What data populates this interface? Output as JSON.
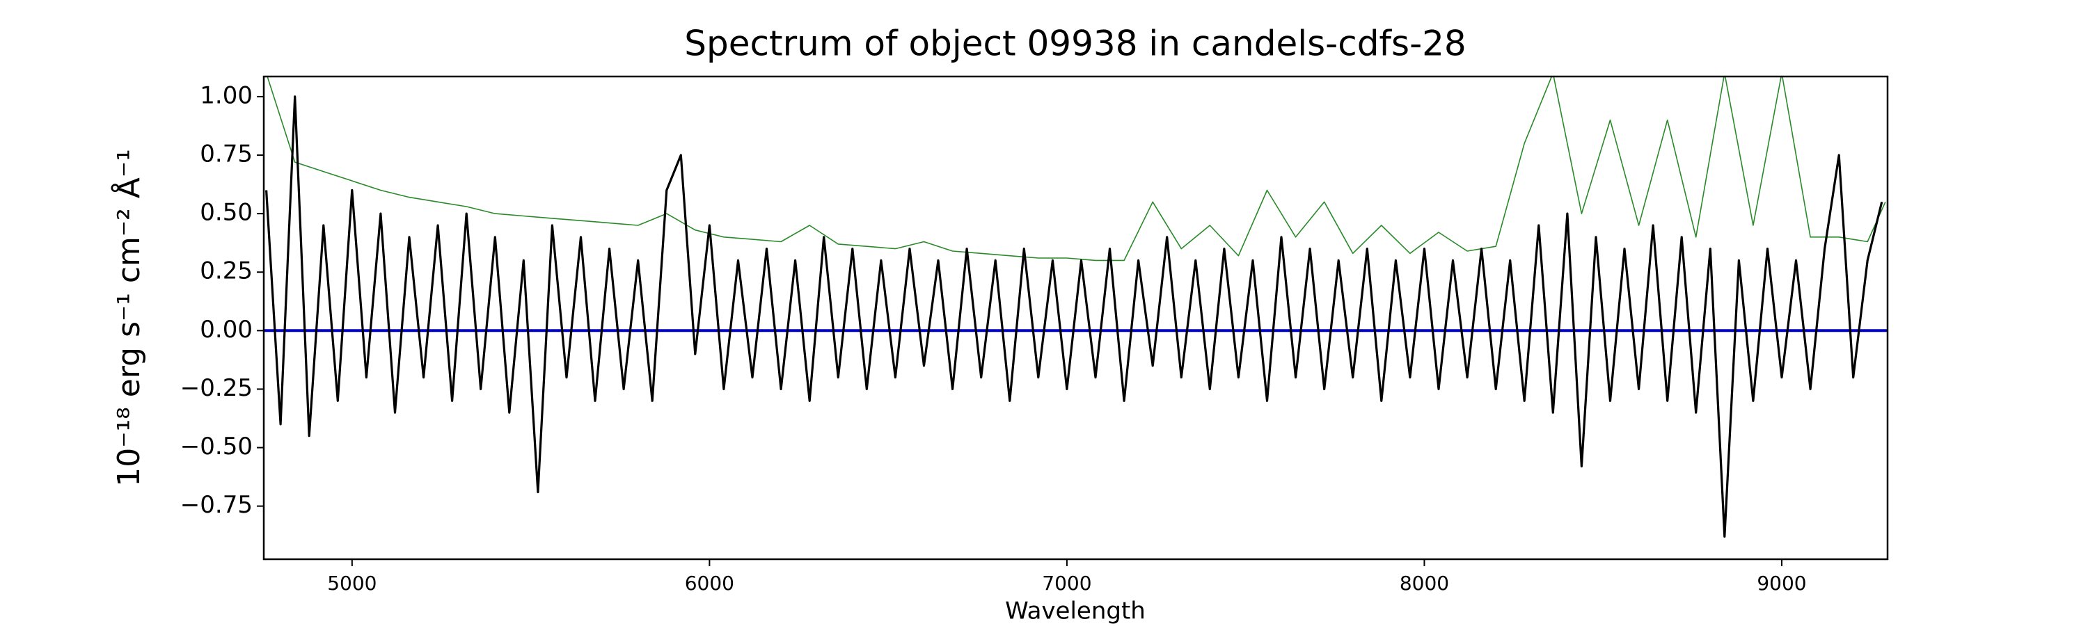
{
  "chart_data": {
    "type": "line",
    "title": "Spectrum of object 09938 in candels-cdfs-28",
    "x_label": "Wavelength",
    "y_label": "10⁻¹⁸ erg s⁻¹ cm⁻² Å⁻¹",
    "xlim": [
      4753,
      9296
    ],
    "ylim": [
      -0.977,
      1.086
    ],
    "xticks": [
      5000,
      6000,
      7000,
      8000,
      9000
    ],
    "yticks": [
      {
        "value": 1.0,
        "label": "1.00"
      },
      {
        "value": 0.75,
        "label": "0.75"
      },
      {
        "value": 0.5,
        "label": "0.50"
      },
      {
        "value": 0.25,
        "label": "0.25"
      },
      {
        "value": 0.0,
        "label": "0.00"
      },
      {
        "value": -0.25,
        "label": "−0.25"
      },
      {
        "value": -0.5,
        "label": "−0.50"
      },
      {
        "value": -0.75,
        "label": "−0.75"
      }
    ],
    "series": [
      {
        "color": "#2a8a2a",
        "width": 1.6,
        "x": [
          4760,
          4840,
          4920,
          5000,
          5080,
          5160,
          5240,
          5320,
          5400,
          5480,
          5560,
          5640,
          5720,
          5800,
          5880,
          5960,
          6040,
          6120,
          6200,
          6280,
          6360,
          6440,
          6520,
          6600,
          6680,
          6760,
          6840,
          6920,
          7000,
          7080,
          7160,
          7240,
          7320,
          7400,
          7480,
          7560,
          7640,
          7720,
          7800,
          7880,
          7960,
          8040,
          8120,
          8200,
          8280,
          8360,
          8440,
          8520,
          8600,
          8680,
          8760,
          8840,
          8920,
          9000,
          9080,
          9160,
          9240,
          9290
        ],
        "values": [
          1.1,
          0.72,
          0.68,
          0.64,
          0.6,
          0.57,
          0.55,
          0.53,
          0.5,
          0.49,
          0.48,
          0.47,
          0.46,
          0.45,
          0.5,
          0.43,
          0.4,
          0.39,
          0.38,
          0.45,
          0.37,
          0.36,
          0.35,
          0.38,
          0.34,
          0.33,
          0.32,
          0.31,
          0.31,
          0.3,
          0.3,
          0.55,
          0.35,
          0.45,
          0.32,
          0.6,
          0.4,
          0.55,
          0.33,
          0.45,
          0.33,
          0.42,
          0.34,
          0.36,
          0.8,
          1.1,
          0.5,
          0.9,
          0.45,
          0.9,
          0.4,
          1.1,
          0.45,
          1.1,
          0.4,
          0.4,
          0.38,
          0.55
        ]
      },
      {
        "color": "#0000cc",
        "width": 4,
        "x": [
          4753,
          9296
        ],
        "values": [
          0,
          0
        ]
      },
      {
        "color": "#000000",
        "width": 3.2,
        "x": [
          4760,
          4800,
          4840,
          4880,
          4920,
          4960,
          5000,
          5040,
          5080,
          5120,
          5160,
          5200,
          5240,
          5280,
          5320,
          5360,
          5400,
          5440,
          5480,
          5520,
          5560,
          5600,
          5640,
          5680,
          5720,
          5760,
          5800,
          5840,
          5880,
          5920,
          5960,
          6000,
          6040,
          6080,
          6120,
          6160,
          6200,
          6240,
          6280,
          6320,
          6360,
          6400,
          6440,
          6480,
          6520,
          6560,
          6600,
          6640,
          6680,
          6720,
          6760,
          6800,
          6840,
          6880,
          6920,
          6960,
          7000,
          7040,
          7080,
          7120,
          7160,
          7200,
          7240,
          7280,
          7320,
          7360,
          7400,
          7440,
          7480,
          7520,
          7560,
          7600,
          7640,
          7680,
          7720,
          7760,
          7800,
          7840,
          7880,
          7920,
          7960,
          8000,
          8040,
          8080,
          8120,
          8160,
          8200,
          8240,
          8280,
          8320,
          8360,
          8400,
          8440,
          8480,
          8520,
          8560,
          8600,
          8640,
          8680,
          8720,
          8760,
          8800,
          8840,
          8880,
          8920,
          8960,
          9000,
          9040,
          9080,
          9120,
          9160,
          9200,
          9240,
          9280
        ],
        "values": [
          0.6,
          -0.4,
          1.0,
          -0.45,
          0.45,
          -0.3,
          0.6,
          -0.2,
          0.5,
          -0.35,
          0.4,
          -0.2,
          0.45,
          -0.3,
          0.5,
          -0.25,
          0.4,
          -0.35,
          0.3,
          -0.69,
          0.45,
          -0.2,
          0.4,
          -0.3,
          0.35,
          -0.25,
          0.3,
          -0.3,
          0.6,
          0.75,
          -0.1,
          0.45,
          -0.25,
          0.3,
          -0.2,
          0.35,
          -0.25,
          0.3,
          -0.3,
          0.4,
          -0.2,
          0.35,
          -0.25,
          0.3,
          -0.2,
          0.35,
          -0.15,
          0.3,
          -0.25,
          0.35,
          -0.2,
          0.3,
          -0.3,
          0.35,
          -0.2,
          0.3,
          -0.25,
          0.3,
          -0.2,
          0.35,
          -0.3,
          0.3,
          -0.15,
          0.4,
          -0.2,
          0.3,
          -0.25,
          0.35,
          -0.2,
          0.3,
          -0.3,
          0.4,
          -0.2,
          0.35,
          -0.25,
          0.3,
          -0.2,
          0.35,
          -0.3,
          0.3,
          -0.2,
          0.35,
          -0.25,
          0.3,
          -0.2,
          0.35,
          -0.25,
          0.3,
          -0.3,
          0.45,
          -0.35,
          0.5,
          -0.58,
          0.4,
          -0.3,
          0.35,
          -0.25,
          0.45,
          -0.3,
          0.4,
          -0.35,
          0.35,
          -0.88,
          0.3,
          -0.3,
          0.35,
          -0.2,
          0.3,
          -0.25,
          0.35,
          0.75,
          -0.2,
          0.3,
          0.55
        ]
      }
    ]
  }
}
